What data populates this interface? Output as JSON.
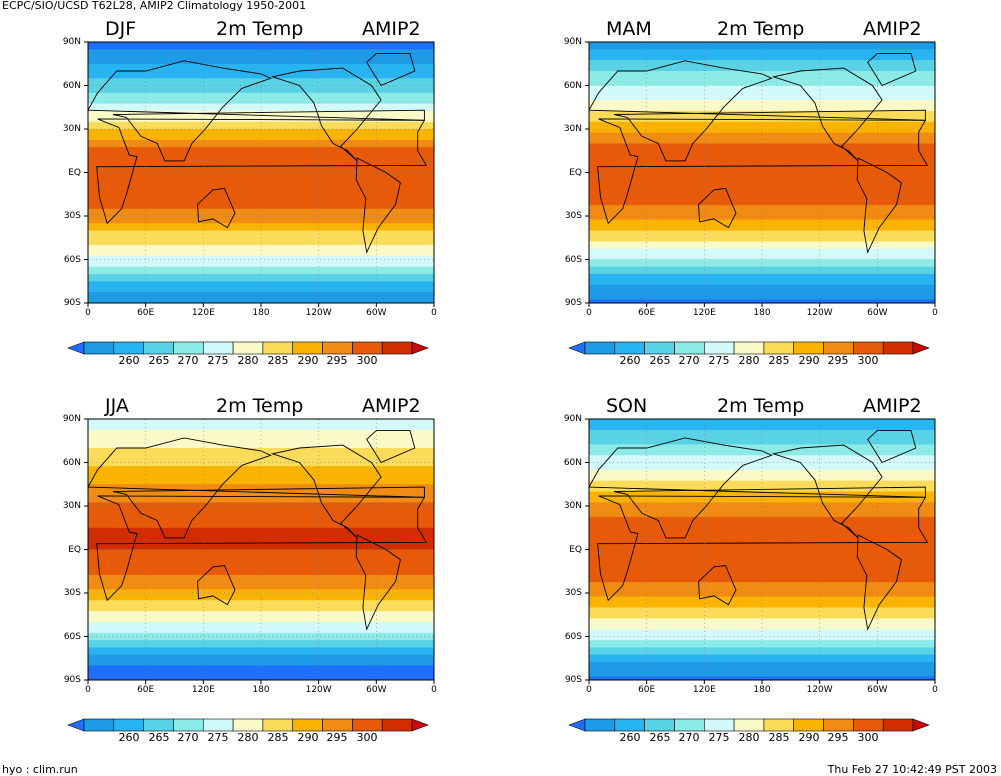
{
  "header": {
    "title": "ECPC/SIO/UCSD T62L28, AMIP2 Climatology 1950-2001",
    "footer_left": "hyo : clim.run",
    "footer_right": "Thu Feb 27 10:42:49 PST 2003"
  },
  "common": {
    "variable": "2m Temp",
    "model": "AMIP2",
    "lat_ticks": [
      "90N",
      "60N",
      "30N",
      "EQ",
      "30S",
      "60S",
      "90S"
    ],
    "lon_ticks": [
      "0",
      "60E",
      "120E",
      "180",
      "120W",
      "60W",
      "0"
    ],
    "colorbar_labels": [
      "260",
      "265",
      "270",
      "275",
      "280",
      "285",
      "290",
      "295",
      "300"
    ],
    "colorbar_colors": [
      "#1e6eff",
      "#1e9be6",
      "#28b4f0",
      "#5ad2e6",
      "#8cebe6",
      "#d2fafa",
      "#fafac8",
      "#fadc5a",
      "#fab400",
      "#f08c14",
      "#e65a0a",
      "#d22d00",
      "#c80a0a"
    ]
  },
  "panels": [
    {
      "season": "DJF"
    },
    {
      "season": "MAM"
    },
    {
      "season": "JJA"
    },
    {
      "season": "SON"
    }
  ],
  "chart_data": [
    {
      "type": "heatmap",
      "title": "DJF 2m Temp AMIP2",
      "x_ticks": [
        "0",
        "60E",
        "120E",
        "180",
        "120W",
        "60W",
        "0"
      ],
      "y_ticks": [
        "90N",
        "60N",
        "30N",
        "EQ",
        "30S",
        "60S",
        "90S"
      ],
      "levels": [
        260,
        265,
        270,
        275,
        280,
        285,
        290,
        295,
        300
      ],
      "zonal_profile": {
        "lat": [
          90,
          75,
          60,
          45,
          30,
          15,
          0,
          -15,
          -30,
          -45,
          -60,
          -75,
          -90
        ],
        "temp_K": [
          248,
          255,
          262,
          272,
          285,
          296,
          300,
          299,
          293,
          282,
          274,
          260,
          250
        ]
      }
    },
    {
      "type": "heatmap",
      "title": "MAM 2m Temp AMIP2",
      "x_ticks": [
        "0",
        "60E",
        "120E",
        "180",
        "120W",
        "60W",
        "0"
      ],
      "y_ticks": [
        "90N",
        "60N",
        "30N",
        "EQ",
        "30S",
        "60S",
        "90S"
      ],
      "levels": [
        260,
        265,
        270,
        275,
        280,
        285,
        290,
        295,
        300
      ],
      "zonal_profile": {
        "lat": [
          90,
          75,
          60,
          45,
          30,
          15,
          0,
          -15,
          -30,
          -45,
          -60,
          -75,
          -90
        ],
        "temp_K": [
          252,
          262,
          270,
          278,
          288,
          298,
          300,
          298,
          291,
          281,
          270,
          256,
          248
        ]
      }
    },
    {
      "type": "heatmap",
      "title": "JJA 2m Temp AMIP2",
      "x_ticks": [
        "0",
        "60E",
        "120E",
        "180",
        "120W",
        "60W",
        "0"
      ],
      "y_ticks": [
        "90N",
        "60N",
        "30N",
        "EQ",
        "30S",
        "60S",
        "90S"
      ],
      "levels": [
        260,
        265,
        270,
        275,
        280,
        285,
        290,
        295,
        300
      ],
      "zonal_profile": {
        "lat": [
          90,
          75,
          60,
          45,
          30,
          15,
          0,
          -15,
          -30,
          -45,
          -60,
          -75,
          -90
        ],
        "temp_K": [
          272,
          278,
          284,
          290,
          296,
          300,
          300,
          296,
          288,
          279,
          268,
          252,
          246
        ]
      }
    },
    {
      "type": "heatmap",
      "title": "SON 2m Temp AMIP2",
      "x_ticks": [
        "0",
        "60E",
        "120E",
        "180",
        "120W",
        "60W",
        "0"
      ],
      "y_ticks": [
        "90N",
        "60N",
        "30N",
        "EQ",
        "30S",
        "60S",
        "90S"
      ],
      "levels": [
        260,
        265,
        270,
        275,
        280,
        285,
        290,
        295,
        300
      ],
      "zonal_profile": {
        "lat": [
          90,
          75,
          60,
          45,
          30,
          15,
          0,
          -15,
          -30,
          -45,
          -60,
          -75,
          -90
        ],
        "temp_K": [
          256,
          264,
          272,
          282,
          292,
          298,
          300,
          298,
          292,
          282,
          272,
          256,
          248
        ]
      }
    }
  ]
}
